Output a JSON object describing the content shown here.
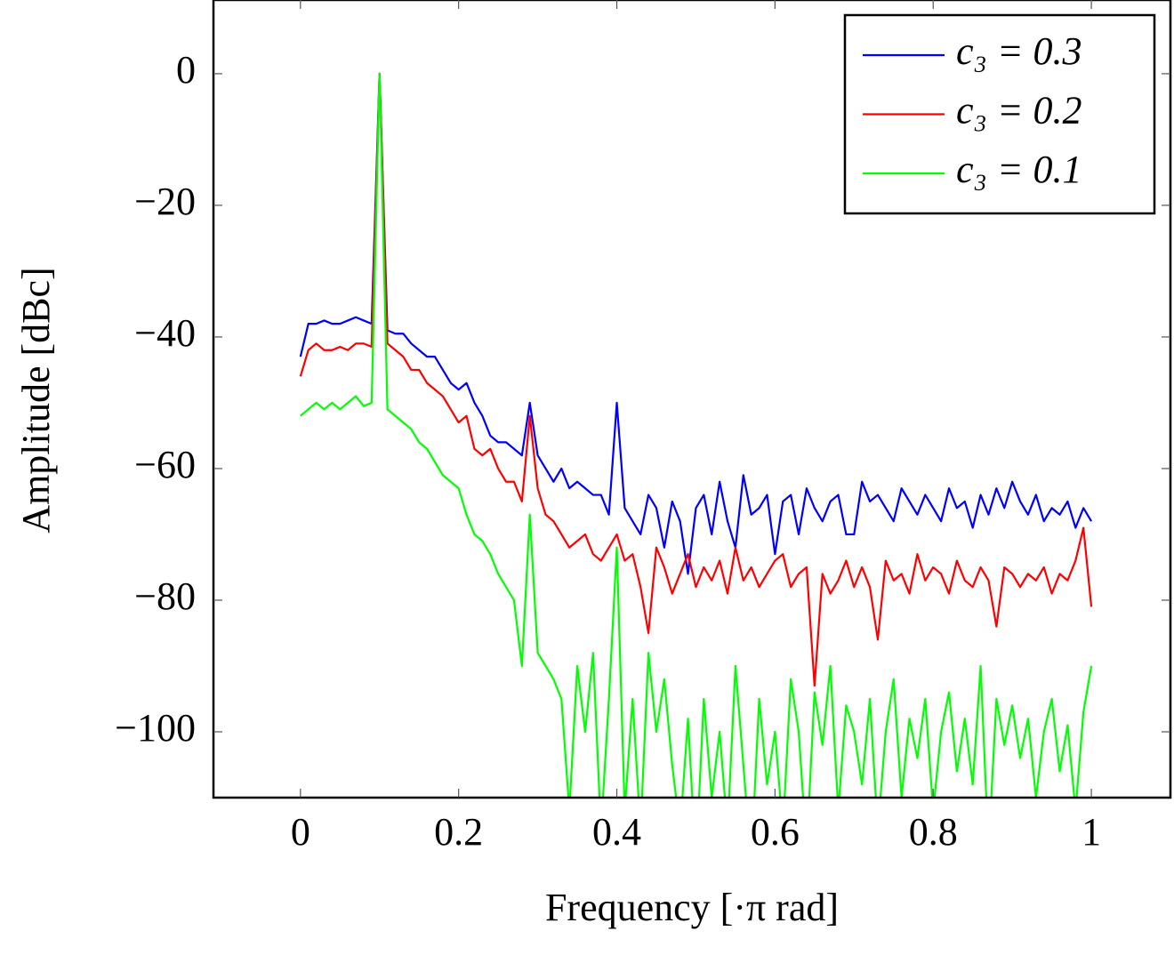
{
  "chart_data": {
    "type": "line",
    "xlabel": "Frequency [·π rad]",
    "ylabel": "Amplitude [dBc]",
    "xlim": [
      -0.11,
      1.1
    ],
    "ylim": [
      -110,
      11.2
    ],
    "xticks": [
      0,
      0.2,
      0.4,
      0.6,
      0.8,
      1
    ],
    "yticks": [
      {
        "value": -100,
        "label": "−100"
      },
      {
        "value": -80,
        "label": "−80"
      },
      {
        "value": -60,
        "label": "−60"
      },
      {
        "value": -40,
        "label": "−40"
      },
      {
        "value": -20,
        "label": "−20"
      },
      0
    ],
    "legend": "upper right",
    "x": [
      0,
      0.01,
      0.02,
      0.03,
      0.04,
      0.05,
      0.06,
      0.07,
      0.08,
      0.09,
      0.1,
      0.11,
      0.12,
      0.13,
      0.14,
      0.15,
      0.16,
      0.17,
      0.18,
      0.19,
      0.2,
      0.21,
      0.22,
      0.23,
      0.24,
      0.25,
      0.26,
      0.27,
      0.28,
      0.29,
      0.3,
      0.31,
      0.32,
      0.33,
      0.34,
      0.35,
      0.36,
      0.37,
      0.38,
      0.39,
      0.4,
      0.41,
      0.42,
      0.43,
      0.44,
      0.45,
      0.46,
      0.47,
      0.48,
      0.49,
      0.5,
      0.51,
      0.52,
      0.53,
      0.54,
      0.55,
      0.56,
      0.57,
      0.58,
      0.59,
      0.6,
      0.61,
      0.62,
      0.63,
      0.64,
      0.65,
      0.66,
      0.67,
      0.68,
      0.69,
      0.7,
      0.71,
      0.72,
      0.73,
      0.74,
      0.75,
      0.76,
      0.77,
      0.78,
      0.79,
      0.8,
      0.81,
      0.82,
      0.83,
      0.84,
      0.85,
      0.86,
      0.87,
      0.88,
      0.89,
      0.9,
      0.91,
      0.92,
      0.93,
      0.94,
      0.95,
      0.96,
      0.97,
      0.98,
      0.99,
      1
    ],
    "series": [
      {
        "name": "c₃ = 0.3",
        "color": "#0000ff",
        "values": [
          -43,
          -38,
          -38,
          -37.5,
          -38,
          -38,
          -37.5,
          -37,
          -37.5,
          -38,
          0,
          -39,
          -39.5,
          -39.5,
          -41,
          -42,
          -43,
          -43,
          -45,
          -47,
          -48,
          -47,
          -50,
          -52,
          -55,
          -56,
          -56,
          -57,
          -58,
          -50,
          -58,
          -60,
          -62,
          -60,
          -63,
          -62,
          -63,
          -64,
          -64,
          -67,
          -50,
          -66,
          -68,
          -70,
          -64,
          -66,
          -72,
          -65,
          -68,
          -76,
          -66,
          -64,
          -70,
          -62,
          -68,
          -72,
          -61,
          -67,
          -66,
          -64,
          -73,
          -65,
          -64,
          -70,
          -63,
          -66,
          -68,
          -65,
          -64,
          -70,
          -70,
          -62,
          -65,
          -64,
          -66,
          -68,
          -63,
          -65,
          -67,
          -64,
          -66,
          -68,
          -63,
          -66,
          -65,
          -69,
          -64,
          -67,
          -63,
          -66,
          -62,
          -65,
          -67,
          -64,
          -68,
          -66,
          -67,
          -65,
          -69,
          -66,
          -68
        ]
      },
      {
        "name": "c₃ = 0.2",
        "color": "#ff0000",
        "values": [
          -46,
          -42,
          -41,
          -42,
          -42,
          -41.5,
          -42,
          -41,
          -41,
          -41.5,
          0,
          -41,
          -42,
          -43,
          -45,
          -45,
          -47,
          -48,
          -49,
          -51,
          -53,
          -52,
          -57,
          -58,
          -57,
          -60,
          -62,
          -62,
          -65,
          -52,
          -63,
          -67,
          -68,
          -70,
          -72,
          -71,
          -70,
          -73,
          -74,
          -72,
          -70,
          -74,
          -73,
          -78,
          -85,
          -72,
          -75,
          -79,
          -76,
          -73,
          -78,
          -75,
          -77,
          -74,
          -79,
          -72,
          -77,
          -75,
          -78,
          -76,
          -74,
          -73,
          -78,
          -76,
          -75,
          -93,
          -76,
          -79,
          -77,
          -74,
          -78,
          -75,
          -78,
          -86,
          -74,
          -77,
          -76,
          -79,
          -73,
          -77,
          -75,
          -76,
          -79,
          -74,
          -77,
          -78,
          -75,
          -77,
          -84,
          -75,
          -76,
          -78,
          -76,
          -77,
          -75,
          -79,
          -76,
          -77,
          -74,
          -69,
          -81
        ]
      },
      {
        "name": "c₃ = 0.1",
        "color": "#00ff00",
        "values": [
          -52,
          -51,
          -50,
          -51,
          -50,
          -51,
          -50,
          -49,
          -50.5,
          -50,
          0,
          -51,
          -52,
          -53,
          -54,
          -56,
          -57,
          -59,
          -61,
          -62,
          -63,
          -67,
          -70,
          -71,
          -73,
          -76,
          -78,
          -80,
          -90,
          -67,
          -88,
          -90,
          -92,
          -95,
          -112,
          -90,
          -100,
          -88,
          -115,
          -95,
          -72,
          -112,
          -95,
          -115,
          -88,
          -100,
          -92,
          -105,
          -115,
          -98,
          -120,
          -95,
          -110,
          -100,
          -115,
          -90,
          -105,
          -120,
          -95,
          -108,
          -100,
          -115,
          -92,
          -100,
          -118,
          -94,
          -102,
          -90,
          -112,
          -96,
          -100,
          -108,
          -95,
          -115,
          -100,
          -92,
          -110,
          -98,
          -104,
          -95,
          -112,
          -100,
          -94,
          -106,
          -98,
          -108,
          -90,
          -118,
          -95,
          -102,
          -96,
          -104,
          -98,
          -110,
          -100,
          -95,
          -106,
          -99,
          -112,
          -97,
          -90
        ]
      }
    ]
  }
}
